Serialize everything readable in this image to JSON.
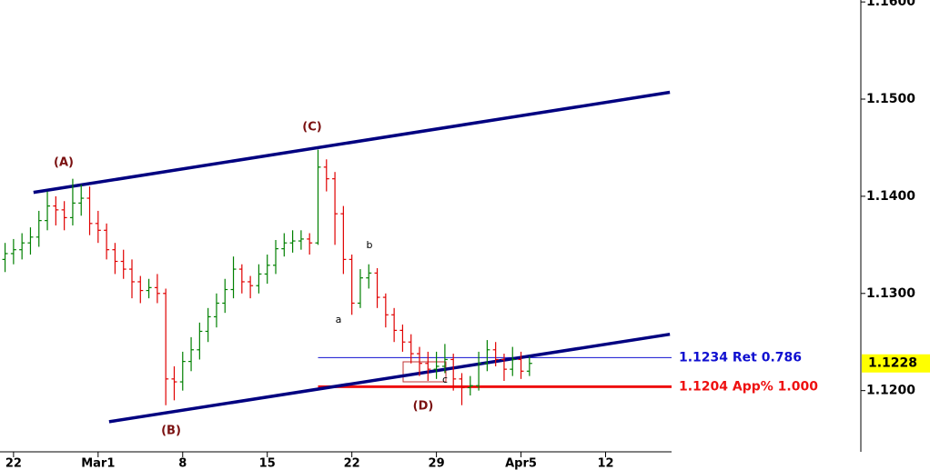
{
  "chart_data": {
    "type": "ohlc",
    "x": [
      -0.5,
      0,
      0.5,
      1,
      1.5,
      2,
      2.5,
      3,
      3.5,
      4,
      4.5,
      5,
      5.5,
      6,
      6.5,
      7,
      7.5,
      8,
      8.5,
      9,
      9.5,
      10,
      10.5,
      11,
      11.5,
      12,
      12.5,
      13,
      13.5,
      14,
      14.5,
      15,
      15.5,
      16,
      16.5,
      17,
      17.5,
      18,
      18.5,
      19,
      19.5,
      20,
      20.5,
      21,
      21.5,
      22,
      22.5,
      23,
      23.5,
      24,
      24.5,
      25,
      25.5,
      26,
      26.5,
      27,
      27.5,
      28,
      28.5,
      29,
      29.5,
      30,
      30.5
    ],
    "open": [
      1.1335,
      1.1341,
      1.1345,
      1.1352,
      1.1358,
      1.1375,
      1.139,
      1.1386,
      1.1378,
      1.1393,
      1.1398,
      1.1372,
      1.1365,
      1.1345,
      1.1333,
      1.1325,
      1.1312,
      1.1303,
      1.1306,
      1.13,
      1.1212,
      1.1209,
      1.123,
      1.1242,
      1.1261,
      1.1276,
      1.129,
      1.1304,
      1.1325,
      1.1312,
      1.1308,
      1.132,
      1.1329,
      1.1346,
      1.1352,
      1.1354,
      1.1356,
      1.1352,
      1.143,
      1.1418,
      1.1382,
      1.1335,
      1.129,
      1.1316,
      1.1321,
      1.1296,
      1.1278,
      1.1262,
      1.125,
      1.1238,
      1.1228,
      1.1222,
      1.1225,
      1.1232,
      1.1212,
      1.1203,
      1.1205,
      1.1228,
      1.1242,
      1.1232,
      1.1222,
      1.1232,
      1.122
    ],
    "high": [
      1.1352,
      1.1356,
      1.1362,
      1.1368,
      1.1385,
      1.1405,
      1.14,
      1.1395,
      1.1418,
      1.1412,
      1.141,
      1.1385,
      1.1372,
      1.1352,
      1.1345,
      1.1335,
      1.1318,
      1.1315,
      1.132,
      1.1305,
      1.1225,
      1.124,
      1.1255,
      1.127,
      1.1285,
      1.13,
      1.1315,
      1.1338,
      1.133,
      1.1318,
      1.133,
      1.134,
      1.1355,
      1.1362,
      1.1365,
      1.1365,
      1.1362,
      1.1448,
      1.1438,
      1.1425,
      1.139,
      1.134,
      1.1325,
      1.133,
      1.1326,
      1.13,
      1.1285,
      1.1268,
      1.1258,
      1.1245,
      1.124,
      1.124,
      1.1248,
      1.1238,
      1.1218,
      1.1215,
      1.124,
      1.1252,
      1.125,
      1.1238,
      1.1245,
      1.124,
      1.1235
    ],
    "low": [
      1.1322,
      1.133,
      1.1335,
      1.134,
      1.1348,
      1.1365,
      1.137,
      1.1365,
      1.137,
      1.138,
      1.136,
      1.1352,
      1.1335,
      1.132,
      1.1315,
      1.1295,
      1.129,
      1.1295,
      1.129,
      1.1185,
      1.119,
      1.12,
      1.122,
      1.1232,
      1.125,
      1.1265,
      1.128,
      1.1295,
      1.13,
      1.1295,
      1.13,
      1.131,
      1.132,
      1.1338,
      1.1342,
      1.1345,
      1.134,
      1.135,
      1.1405,
      1.135,
      1.132,
      1.1278,
      1.1285,
      1.1305,
      1.1285,
      1.1265,
      1.125,
      1.124,
      1.1228,
      1.1215,
      1.121,
      1.1212,
      1.1218,
      1.12,
      1.1185,
      1.1195,
      1.12,
      1.122,
      1.1225,
      1.121,
      1.1215,
      1.1212,
      1.1215
    ],
    "close": [
      1.1341,
      1.1345,
      1.1352,
      1.1358,
      1.1375,
      1.139,
      1.1386,
      1.1378,
      1.1393,
      1.1398,
      1.1372,
      1.1365,
      1.1345,
      1.1333,
      1.1325,
      1.1312,
      1.1303,
      1.1306,
      1.13,
      1.1212,
      1.1209,
      1.123,
      1.1242,
      1.1261,
      1.1276,
      1.129,
      1.1304,
      1.1325,
      1.1312,
      1.1308,
      1.132,
      1.1329,
      1.1346,
      1.1352,
      1.1354,
      1.1356,
      1.1352,
      1.143,
      1.1418,
      1.1382,
      1.1335,
      1.129,
      1.1316,
      1.1321,
      1.1296,
      1.1278,
      1.1262,
      1.125,
      1.1238,
      1.1228,
      1.1222,
      1.1225,
      1.1232,
      1.1212,
      1.1203,
      1.1205,
      1.1228,
      1.1242,
      1.1232,
      1.1222,
      1.1232,
      1.122,
      1.1228
    ],
    "up_color": "#008000",
    "down_color": "#e00000",
    "xlim": [
      -0.8,
      38.9
    ],
    "xticks": [
      {
        "value": 0,
        "label": "22"
      },
      {
        "value": 5,
        "label": "Mar1"
      },
      {
        "value": 10,
        "label": "8"
      },
      {
        "value": 15,
        "label": "15"
      },
      {
        "value": 20,
        "label": "22"
      },
      {
        "value": 25,
        "label": "29"
      },
      {
        "value": 30,
        "label": "Apr5"
      },
      {
        "value": 35,
        "label": "12"
      }
    ],
    "ylim": [
      1.1137,
      1.1602
    ],
    "yticks": [
      {
        "value": 1.12,
        "label": "1.1200"
      },
      {
        "value": 1.13,
        "label": "1.1300"
      },
      {
        "value": 1.14,
        "label": "1.1400"
      },
      {
        "value": 1.15,
        "label": "1.1500"
      },
      {
        "value": 1.16,
        "label": "1.1600"
      }
    ],
    "trendlines": [
      {
        "x": [
          1.18,
          38.8
        ],
        "y": [
          1.1404,
          1.1507
        ],
        "color": "#000080"
      },
      {
        "x": [
          5.65,
          38.8
        ],
        "y": [
          1.1168,
          1.1258
        ],
        "color": "#000080"
      }
    ],
    "levels": [
      {
        "value": 1.1234,
        "x_start": 18.0,
        "label": "1.1234 Ret 0.786",
        "color": "#1010d0",
        "width": 1
      },
      {
        "value": 1.1204,
        "x_start": 18.0,
        "label": "1.1204 App% 1.000",
        "color": "#ee1010",
        "width": 3
      }
    ],
    "last_price": 1.1228,
    "wave_labels": [
      "(A)",
      "(B)",
      "(C)",
      "(D)",
      "a",
      "b",
      "c"
    ]
  }
}
